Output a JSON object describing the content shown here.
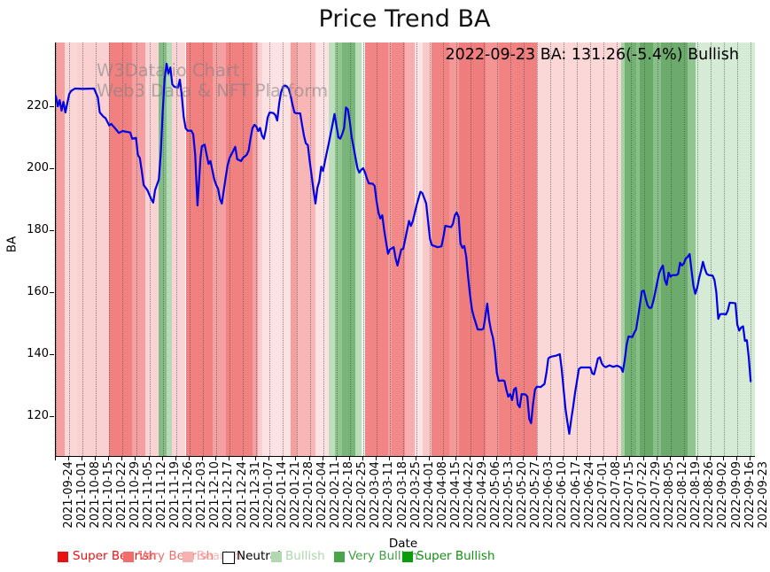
{
  "header": {
    "title": "Price Trend BA"
  },
  "watermark": {
    "line1": "W3Data.io Chart",
    "line2": "Web3 Data & NFT Platform"
  },
  "plot": {
    "annotation": "2022-09-23 BA: 131.26(-5.4%) Bullish"
  },
  "axes": {
    "ylabel": "BA",
    "xlabel": "Date"
  },
  "legend": {
    "items": [
      {
        "label": "Super Bearish",
        "swatch": "#e81212",
        "text_color": "#e81212",
        "sx": 65,
        "lx": 82,
        "border": ""
      },
      {
        "label": "Very Bearish",
        "swatch": "#f46d6d",
        "text_color": "#f46d6d",
        "sx": 139,
        "lx": 156,
        "border": ""
      },
      {
        "label": "Bearish",
        "swatch": "#f6b1b1",
        "text_color": "#f6baba",
        "sx": 206,
        "lx": 222,
        "border": ""
      },
      {
        "label": "Neutral",
        "swatch": "#ffffff",
        "text_color": "#000000",
        "sx": 251,
        "lx": 267,
        "border": "#000000"
      },
      {
        "label": "Bullish",
        "swatch": "#b2d8b2",
        "text_color": "#aed5ae",
        "sx": 306,
        "lx": 322,
        "border": ""
      },
      {
        "label": "Very Bullish",
        "swatch": "#4aa54a",
        "text_color": "#41a041",
        "sx": 377,
        "lx": 393,
        "border": ""
      },
      {
        "label": "Super Bullish",
        "swatch": "#0b9b0b",
        "text_color": "#128f12",
        "sx": 454,
        "lx": 470,
        "border": ""
      }
    ]
  },
  "chart_data": {
    "type": "line",
    "title": "Price Trend BA",
    "xlabel": "Date",
    "ylabel": "BA",
    "series_name": "BA",
    "line_color": "#0101e6",
    "ylim": [
      107.1,
      240.6
    ],
    "yticks": [
      120,
      140,
      160,
      180,
      200,
      220
    ],
    "grid": "weekly-vertical-dotted",
    "legend_position": "bottom",
    "last_point": {
      "date": "2022-09-23",
      "value": 131.26,
      "change_pct": -5.4,
      "signal": "Bullish"
    },
    "x_tick_dates": [
      "2021-09-24",
      "2021-10-01",
      "2021-10-08",
      "2021-10-15",
      "2021-10-22",
      "2021-10-29",
      "2021-11-05",
      "2021-11-12",
      "2021-11-19",
      "2021-11-26",
      "2021-12-03",
      "2021-12-10",
      "2021-12-17",
      "2021-12-24",
      "2021-12-31",
      "2022-01-07",
      "2022-01-14",
      "2022-01-21",
      "2022-01-28",
      "2022-02-04",
      "2022-02-11",
      "2022-02-18",
      "2022-02-25",
      "2022-03-04",
      "2022-03-11",
      "2022-03-18",
      "2022-03-25",
      "2022-04-01",
      "2022-04-08",
      "2022-04-15",
      "2022-04-22",
      "2022-04-29",
      "2022-05-06",
      "2022-05-13",
      "2022-05-20",
      "2022-05-27",
      "2022-06-03",
      "2022-06-10",
      "2022-06-17",
      "2022-06-24",
      "2022-07-01",
      "2022-07-08",
      "2022-07-15",
      "2022-07-22",
      "2022-07-29",
      "2022-08-05",
      "2022-08-12",
      "2022-08-19",
      "2022-08-26",
      "2022-09-02",
      "2022-09-09",
      "2022-09-16",
      "2022-09-23"
    ],
    "series": [
      [
        0,
        223.3
      ],
      [
        1,
        220
      ],
      [
        2,
        222
      ],
      [
        3,
        218.6
      ],
      [
        4,
        221.4
      ],
      [
        5,
        218
      ],
      [
        6,
        220.9
      ],
      [
        7,
        223.9
      ],
      [
        8,
        224.9
      ],
      [
        10,
        225.7
      ],
      [
        14,
        225.6
      ],
      [
        20,
        225.7
      ],
      [
        22,
        222.9
      ],
      [
        23,
        218
      ],
      [
        25,
        216.6
      ],
      [
        26,
        216.2
      ],
      [
        28,
        213.8
      ],
      [
        29,
        214.3
      ],
      [
        31,
        212.9
      ],
      [
        33,
        211.4
      ],
      [
        35,
        212
      ],
      [
        39,
        211.5
      ],
      [
        40,
        209.5
      ],
      [
        42,
        209.8
      ],
      [
        43,
        204.3
      ],
      [
        44,
        203.3
      ],
      [
        45,
        199.3
      ],
      [
        46,
        194.6
      ],
      [
        48,
        192.9
      ],
      [
        50,
        190
      ],
      [
        51,
        188.9
      ],
      [
        52,
        192.9
      ],
      [
        54,
        196.4
      ],
      [
        55,
        205
      ],
      [
        56,
        218
      ],
      [
        57,
        229
      ],
      [
        58,
        233.7
      ],
      [
        59,
        230.5
      ],
      [
        60,
        232.5
      ],
      [
        61,
        227.1
      ],
      [
        62,
        226.3
      ],
      [
        64,
        226
      ],
      [
        65,
        228.6
      ],
      [
        66,
        223.4
      ],
      [
        67,
        216.6
      ],
      [
        68,
        212.9
      ],
      [
        69,
        212.1
      ],
      [
        71,
        212.1
      ],
      [
        72,
        210.9
      ],
      [
        73,
        204.3
      ],
      [
        73.6,
        196
      ],
      [
        74.2,
        188
      ],
      [
        75,
        195.7
      ],
      [
        75.8,
        203.4
      ],
      [
        76.5,
        207.1
      ],
      [
        78,
        207.6
      ],
      [
        79,
        204.3
      ],
      [
        80,
        201.4
      ],
      [
        81,
        202.3
      ],
      [
        83,
        196.4
      ],
      [
        84,
        194.6
      ],
      [
        85,
        193.4
      ],
      [
        86,
        190
      ],
      [
        87,
        188.6
      ],
      [
        88,
        193
      ],
      [
        89,
        197
      ],
      [
        90,
        201
      ],
      [
        91,
        203.3
      ],
      [
        93,
        205.7
      ],
      [
        94,
        206.9
      ],
      [
        95,
        202.9
      ],
      [
        97,
        202.3
      ],
      [
        98,
        203.3
      ],
      [
        100,
        204.3
      ],
      [
        101,
        205.7
      ],
      [
        102,
        209.5
      ],
      [
        103,
        212.9
      ],
      [
        104,
        214
      ],
      [
        105,
        213.5
      ],
      [
        106,
        212
      ],
      [
        107,
        213
      ],
      [
        108,
        210.5
      ],
      [
        109,
        209.5
      ],
      [
        110,
        212.5
      ],
      [
        111,
        216.4
      ],
      [
        112,
        218
      ],
      [
        114,
        217.8
      ],
      [
        115,
        217.1
      ],
      [
        116,
        215.4
      ],
      [
        117,
        221
      ],
      [
        118,
        224.5
      ],
      [
        119,
        226.3
      ],
      [
        120,
        226.7
      ],
      [
        121,
        226.4
      ],
      [
        122,
        225.7
      ],
      [
        123,
        223.4
      ],
      [
        124,
        220.5
      ],
      [
        125,
        218
      ],
      [
        126,
        217.7
      ],
      [
        128,
        217.7
      ],
      [
        129,
        214
      ],
      [
        130,
        210.4
      ],
      [
        131,
        208
      ],
      [
        132,
        207.5
      ],
      [
        133,
        202.3
      ],
      [
        134,
        197.6
      ],
      [
        135,
        192.9
      ],
      [
        136,
        188.6
      ],
      [
        137,
        193.7
      ],
      [
        138,
        195.7
      ],
      [
        139,
        200.5
      ],
      [
        140,
        199.1
      ],
      [
        141,
        202.3
      ],
      [
        142,
        205.2
      ],
      [
        143,
        208.1
      ],
      [
        144,
        211.2
      ],
      [
        145,
        214.3
      ],
      [
        146,
        217.5
      ],
      [
        147,
        213.8
      ],
      [
        148,
        210
      ],
      [
        149,
        209.5
      ],
      [
        150,
        211
      ],
      [
        151,
        212.9
      ],
      [
        152,
        219.6
      ],
      [
        153,
        219
      ],
      [
        154,
        215
      ],
      [
        155,
        210
      ],
      [
        156,
        206.7
      ],
      [
        157,
        203.4
      ],
      [
        158,
        200
      ],
      [
        159,
        198.6
      ],
      [
        160,
        199.5
      ],
      [
        161,
        200
      ],
      [
        162,
        198.6
      ],
      [
        163,
        196.6
      ],
      [
        164,
        195.1
      ],
      [
        166,
        195
      ],
      [
        167,
        194.3
      ],
      [
        168,
        189.5
      ],
      [
        169,
        185.7
      ],
      [
        170,
        183.8
      ],
      [
        171,
        184.8
      ],
      [
        172,
        180
      ],
      [
        173,
        176.2
      ],
      [
        174,
        172.4
      ],
      [
        175,
        173.8
      ],
      [
        177,
        174.5
      ],
      [
        178,
        170.9
      ],
      [
        179,
        168.6
      ],
      [
        180,
        171.4
      ],
      [
        181,
        173.8
      ],
      [
        182,
        174
      ],
      [
        184,
        180
      ],
      [
        185,
        183
      ],
      [
        186,
        181.4
      ],
      [
        187,
        182.9
      ],
      [
        189,
        188.1
      ],
      [
        191,
        192.4
      ],
      [
        192,
        192
      ],
      [
        194,
        188.6
      ],
      [
        195,
        182.9
      ],
      [
        196,
        177.1
      ],
      [
        197,
        175.2
      ],
      [
        200,
        174.5
      ],
      [
        202,
        174.8
      ],
      [
        203,
        177.6
      ],
      [
        204,
        181.4
      ],
      [
        207,
        181
      ],
      [
        208,
        182
      ],
      [
        209,
        184.8
      ],
      [
        210,
        185.7
      ],
      [
        211,
        184.3
      ],
      [
        212,
        175.7
      ],
      [
        213,
        174.3
      ],
      [
        214,
        174.9
      ],
      [
        215,
        171.4
      ],
      [
        216,
        164.9
      ],
      [
        217,
        159
      ],
      [
        218,
        154.3
      ],
      [
        219,
        152
      ],
      [
        220,
        150
      ],
      [
        221,
        148
      ],
      [
        223,
        147.9
      ],
      [
        224,
        148.2
      ],
      [
        225,
        152
      ],
      [
        226,
        156.3
      ],
      [
        227,
        151
      ],
      [
        228,
        147.6
      ],
      [
        229,
        145.2
      ],
      [
        230,
        141
      ],
      [
        231,
        134
      ],
      [
        232,
        131.4
      ],
      [
        234,
        131.5
      ],
      [
        235,
        131.4
      ],
      [
        236,
        128.6
      ],
      [
        237,
        126.3
      ],
      [
        238,
        127.1
      ],
      [
        239,
        125.2
      ],
      [
        240,
        128.6
      ],
      [
        241,
        129.1
      ],
      [
        242,
        123.8
      ],
      [
        243,
        122.9
      ],
      [
        244,
        127.1
      ],
      [
        246,
        127
      ],
      [
        247,
        126.3
      ],
      [
        248,
        119.1
      ],
      [
        249,
        117.7
      ],
      [
        250,
        124
      ],
      [
        251,
        128.6
      ],
      [
        252,
        129.5
      ],
      [
        254,
        129.4
      ],
      [
        256,
        130.4
      ],
      [
        257,
        134
      ],
      [
        258,
        138.6
      ],
      [
        259,
        139.1
      ],
      [
        262,
        139.5
      ],
      [
        264,
        140
      ],
      [
        265,
        135.2
      ],
      [
        266,
        128.6
      ],
      [
        267,
        122.4
      ],
      [
        268,
        118
      ],
      [
        269,
        114.3
      ],
      [
        270,
        119
      ],
      [
        271,
        122.9
      ],
      [
        272,
        127.6
      ],
      [
        273,
        131.4
      ],
      [
        274,
        135.2
      ],
      [
        275,
        135.7
      ],
      [
        278,
        135.7
      ],
      [
        280,
        135.7
      ],
      [
        281,
        133.8
      ],
      [
        282,
        133.5
      ],
      [
        283,
        136
      ],
      [
        284,
        138.6
      ],
      [
        285,
        139
      ],
      [
        286,
        137
      ],
      [
        287,
        136.2
      ],
      [
        288,
        135.8
      ],
      [
        290,
        136.4
      ],
      [
        292,
        135.9
      ],
      [
        294,
        136.3
      ],
      [
        296,
        135.7
      ],
      [
        297,
        134.3
      ],
      [
        298,
        138
      ],
      [
        299,
        143
      ],
      [
        300,
        145.7
      ],
      [
        302,
        145.5
      ],
      [
        303,
        146.9
      ],
      [
        304,
        148
      ],
      [
        305,
        152
      ],
      [
        306,
        156
      ],
      [
        307,
        160.3
      ],
      [
        308,
        160.5
      ],
      [
        309,
        158
      ],
      [
        310,
        155.7
      ],
      [
        311,
        154.9
      ],
      [
        312,
        155
      ],
      [
        313,
        157.1
      ],
      [
        314,
        160
      ],
      [
        315,
        163
      ],
      [
        316,
        166
      ],
      [
        317,
        167.5
      ],
      [
        318,
        168.6
      ],
      [
        319,
        164
      ],
      [
        320,
        162.4
      ],
      [
        321,
        166.3
      ],
      [
        322,
        165
      ],
      [
        323,
        165.5
      ],
      [
        325,
        165.5
      ],
      [
        326,
        165.9
      ],
      [
        327,
        169.5
      ],
      [
        328,
        168.6
      ],
      [
        329,
        169.3
      ],
      [
        330,
        170.9
      ],
      [
        331,
        171.4
      ],
      [
        332,
        172.3
      ],
      [
        333,
        167.1
      ],
      [
        334,
        162
      ],
      [
        335,
        159.5
      ],
      [
        336,
        161.5
      ],
      [
        337,
        164.5
      ],
      [
        338,
        167
      ],
      [
        339,
        169.8
      ],
      [
        340,
        167.5
      ],
      [
        341,
        165.9
      ],
      [
        342,
        165.5
      ],
      [
        344,
        165.4
      ],
      [
        345,
        164
      ],
      [
        346,
        160
      ],
      [
        347,
        151.4
      ],
      [
        348,
        152.9
      ],
      [
        350,
        153
      ],
      [
        351,
        152.8
      ],
      [
        352,
        154
      ],
      [
        353,
        156.6
      ],
      [
        355,
        156.5
      ],
      [
        356,
        156.4
      ],
      [
        357,
        149.5
      ],
      [
        358,
        147.6
      ],
      [
        359,
        148.6
      ],
      [
        360,
        149
      ],
      [
        361,
        144.3
      ],
      [
        362,
        144.5
      ],
      [
        363,
        139
      ],
      [
        364,
        131.26
      ]
    ],
    "sentiment_bands": [
      {
        "d0": 0,
        "d1": 4.5,
        "c": "#f5a0a0"
      },
      {
        "d0": 4.5,
        "d1": 11,
        "c": "#fbd8d8"
      },
      {
        "d0": 11,
        "d1": 28,
        "c": "#fad0d0"
      },
      {
        "d0": 28,
        "d1": 40,
        "c": "#f18181"
      },
      {
        "d0": 40,
        "d1": 47,
        "c": "#f5a0a0"
      },
      {
        "d0": 47,
        "d1": 54,
        "c": "#fad4d4"
      },
      {
        "d0": 54,
        "d1": 58,
        "c": "#85bc85"
      },
      {
        "d0": 58,
        "d1": 61,
        "c": "#b5dab5"
      },
      {
        "d0": 61,
        "d1": 68,
        "c": "#fad4d4"
      },
      {
        "d0": 68,
        "d1": 82,
        "c": "#f18181"
      },
      {
        "d0": 82,
        "d1": 89,
        "c": "#f5a0a0"
      },
      {
        "d0": 89,
        "d1": 103,
        "c": "#f18181"
      },
      {
        "d0": 103,
        "d1": 106,
        "c": "#f5a0a0"
      },
      {
        "d0": 106,
        "d1": 108,
        "c": "#fad0d0"
      },
      {
        "d0": 108,
        "d1": 123,
        "c": "#fce2e2"
      },
      {
        "d0": 123,
        "d1": 126,
        "c": "#f5a0a0"
      },
      {
        "d0": 126,
        "d1": 136,
        "c": "#f8b6b6"
      },
      {
        "d0": 136,
        "d1": 143,
        "c": "#fce2e2"
      },
      {
        "d0": 143,
        "d1": 146,
        "c": "#bedfbe"
      },
      {
        "d0": 146,
        "d1": 150,
        "c": "#90c590"
      },
      {
        "d0": 150,
        "d1": 157,
        "c": "#79b479"
      },
      {
        "d0": 157,
        "d1": 160,
        "c": "#b9dcb9"
      },
      {
        "d0": 160,
        "d1": 162,
        "c": "#e9f3e9"
      },
      {
        "d0": 162,
        "d1": 174,
        "c": "#f18484"
      },
      {
        "d0": 174,
        "d1": 176,
        "c": "#f5a0a0"
      },
      {
        "d0": 176,
        "d1": 183,
        "c": "#f28888"
      },
      {
        "d0": 183,
        "d1": 188,
        "c": "#f7aeae"
      },
      {
        "d0": 188,
        "d1": 192,
        "c": "#fce4e4"
      },
      {
        "d0": 192,
        "d1": 197,
        "c": "#f9c8c8"
      },
      {
        "d0": 197,
        "d1": 206,
        "c": "#f18383"
      },
      {
        "d0": 206,
        "d1": 211,
        "c": "#f59898"
      },
      {
        "d0": 211,
        "d1": 225,
        "c": "#f07d7d"
      },
      {
        "d0": 225,
        "d1": 232,
        "c": "#f49494"
      },
      {
        "d0": 232,
        "d1": 242,
        "c": "#f18383"
      },
      {
        "d0": 242,
        "d1": 252,
        "c": "#f18080"
      },
      {
        "d0": 252,
        "d1": 296,
        "c": "#fbd7d7"
      },
      {
        "d0": 296,
        "d1": 298,
        "c": "#a8d1a8"
      },
      {
        "d0": 298,
        "d1": 304,
        "c": "#74b274"
      },
      {
        "d0": 304,
        "d1": 306,
        "c": "#8abf8a"
      },
      {
        "d0": 306,
        "d1": 313,
        "c": "#68a968"
      },
      {
        "d0": 313,
        "d1": 317,
        "c": "#8abf8a"
      },
      {
        "d0": 317,
        "d1": 331,
        "c": "#6cab6c"
      },
      {
        "d0": 331,
        "d1": 335,
        "c": "#90c490"
      },
      {
        "d0": 335,
        "d1": 366.5,
        "c": "#d5ebd5"
      }
    ]
  }
}
